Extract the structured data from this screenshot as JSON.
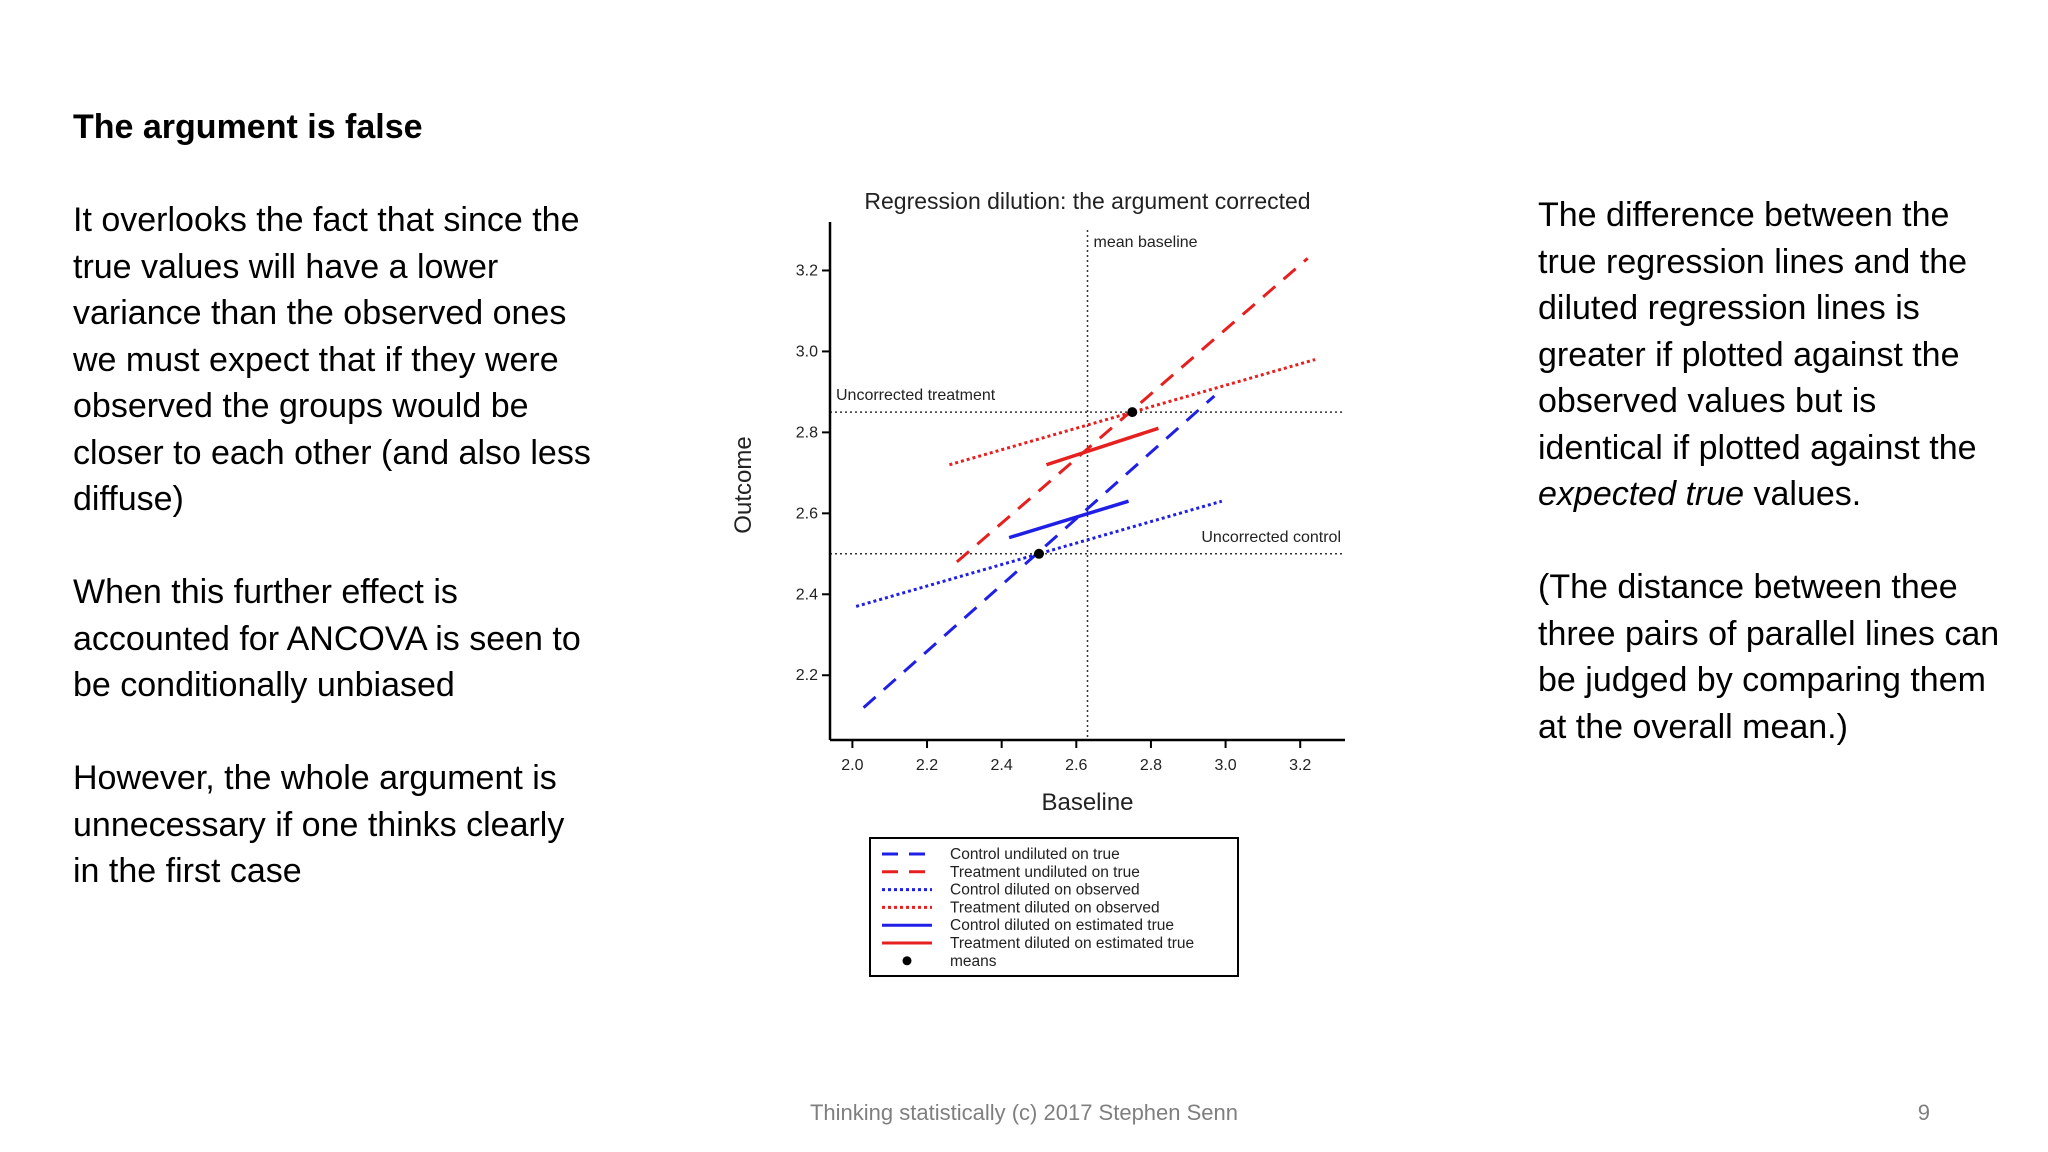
{
  "left_text": {
    "heading": "The argument is false",
    "para1": "It overlooks the fact that since the true values will have a lower variance than the observed ones we must expect that if they were observed the groups would be closer to each other (and also less diffuse)",
    "para2": "When this further effect is accounted for ANCOVA is seen to be conditionally unbiased",
    "para3": "However, the whole argument is unnecessary if one thinks clearly in the first case"
  },
  "right_text": {
    "para1_before": "The difference between the true regression lines and the diluted regression lines is greater if plotted against the observed values but is identical if plotted against the ",
    "para1_emph": "expected true",
    "para1_after": " values.",
    "para2": "(The distance between thee three pairs of parallel lines can be judged by comparing them at the overall mean.)"
  },
  "footer": {
    "text": "Thinking statistically (c) 2017 Stephen Senn",
    "page_number": "9"
  },
  "chart_data": {
    "type": "line",
    "title": "Regression dilution: the argument corrected",
    "xlabel": "Baseline",
    "ylabel": "Outcome",
    "xlim": [
      1.94,
      3.32
    ],
    "ylim": [
      2.04,
      3.3
    ],
    "xticks": [
      "2.0",
      "2.2",
      "2.4",
      "2.6",
      "2.8",
      "3.0",
      "3.2"
    ],
    "yticks": [
      "2.2",
      "2.4",
      "2.6",
      "2.8",
      "3.0",
      "3.2"
    ],
    "series": [
      {
        "name": "Control undiluted on true",
        "color": "#1f1fe6",
        "style": "dashed",
        "x": [
          2.03,
          2.97
        ],
        "y": [
          2.12,
          2.89
        ]
      },
      {
        "name": "Treatment undiluted on true",
        "color": "#e61f1f",
        "style": "dashed",
        "x": [
          2.28,
          3.22
        ],
        "y": [
          2.48,
          3.23
        ]
      },
      {
        "name": "Control diluted on observed",
        "color": "#1f1fe6",
        "style": "dotted",
        "x": [
          2.01,
          2.99
        ],
        "y": [
          2.37,
          2.63
        ]
      },
      {
        "name": "Treatment diluted on observed",
        "color": "#e61f1f",
        "style": "dotted",
        "x": [
          2.26,
          3.24
        ],
        "y": [
          2.72,
          2.98
        ]
      },
      {
        "name": "Control diluted on estimated true",
        "color": "#1f1fe6",
        "style": "solid",
        "x": [
          2.42,
          2.74
        ],
        "y": [
          2.54,
          2.63
        ]
      },
      {
        "name": "Treatment diluted on estimated true",
        "color": "#e61f1f",
        "style": "solid",
        "x": [
          2.52,
          2.82
        ],
        "y": [
          2.72,
          2.81
        ]
      }
    ],
    "means": {
      "name": "means",
      "points": [
        {
          "x": 2.5,
          "y": 2.5
        },
        {
          "x": 2.75,
          "y": 2.85
        }
      ]
    },
    "reference_lines": [
      {
        "orientation": "vertical",
        "value": 2.63,
        "label": "mean baseline"
      },
      {
        "orientation": "horizontal",
        "value": 2.85,
        "label": "Uncorrected treatment"
      },
      {
        "orientation": "horizontal",
        "value": 2.5,
        "label": "Uncorrected control"
      }
    ],
    "legend_position": "bottom"
  }
}
